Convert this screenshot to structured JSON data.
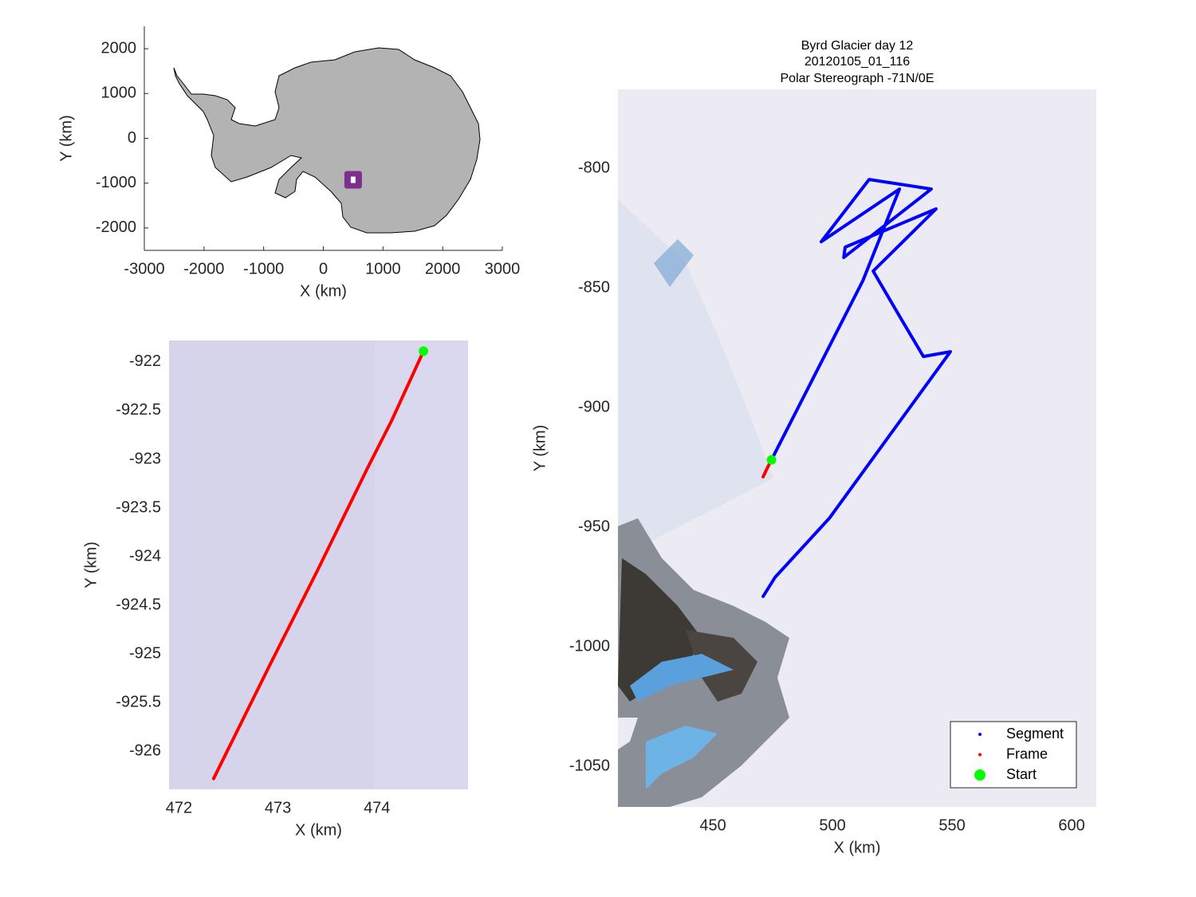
{
  "chart_data": [
    {
      "type": "map",
      "xlabel": "X (km)",
      "ylabel": "Y (km)",
      "xlim": [
        -3000,
        3000
      ],
      "ylim": [
        -2500,
        2500
      ],
      "xticks": [
        -3000,
        -2000,
        -1000,
        0,
        1000,
        2000,
        3000
      ],
      "yticks": [
        -2000,
        -1000,
        0,
        1000,
        2000
      ],
      "series": [
        {
          "color": "#7e2f8e",
          "style": "square",
          "x": [
            500
          ],
          "y": [
            -925
          ]
        }
      ]
    },
    {
      "type": "track",
      "xlabel": "X (km)",
      "ylabel": "Y (km)",
      "xlim": [
        471.9,
        474.92
      ],
      "ylim": [
        -926.39,
        -921.78
      ],
      "xticks": [
        472,
        473,
        474
      ],
      "yticks": [
        -922,
        -922.5,
        -923,
        -923.5,
        -924,
        -924.5,
        -925,
        -925.5,
        -926
      ],
      "series": [
        {
          "color": "#ff0000",
          "style": "line",
          "x": [
            472.35,
            472.9,
            473.4,
            473.9,
            474.15,
            474.47
          ],
          "y": [
            -926.28,
            -925.15,
            -924.14,
            -923.1,
            -922.6,
            -921.89
          ]
        },
        {
          "color": "#00ff00",
          "style": "marker",
          "x": [
            474.47
          ],
          "y": [
            -921.89
          ]
        }
      ]
    },
    {
      "type": "track",
      "title": [
        "Byrd Glacier day 12",
        "20120105_01_116",
        "Polar Stereograph -71N/0E"
      ],
      "xlabel": "X (km)",
      "ylabel": "Y (km)",
      "xlim": [
        410.3,
        610.3
      ],
      "ylim": [
        -1067,
        -767
      ],
      "xticks": [
        450,
        500,
        550,
        600
      ],
      "yticks": [
        -800,
        -850,
        -900,
        -950,
        -1000,
        -1050
      ],
      "legend": "southeast",
      "series": [
        {
          "name": "Segment",
          "color": "#0000ff",
          "style": "line",
          "x": [
            474.5,
            512.7,
            528,
            495.3,
            515.3,
            541.3,
            504.7,
            505.3,
            543.3,
            517,
            528.7,
            538,
            549.3,
            498.7,
            476,
            471
          ],
          "y": [
            -921.9,
            -847,
            -808.7,
            -830.7,
            -804.7,
            -808.7,
            -837.3,
            -833,
            -817,
            -843,
            -863,
            -878.7,
            -876.7,
            -946.3,
            -971,
            -979
          ]
        },
        {
          "name": "Frame",
          "color": "#ff0000",
          "style": "line",
          "x": [
            471,
            472.6,
            474.5
          ],
          "y": [
            -929,
            -925.6,
            -921.9
          ]
        },
        {
          "name": "Start",
          "color": "#00ff00",
          "style": "marker",
          "x": [
            474.5
          ],
          "y": [
            -921.9
          ]
        }
      ]
    }
  ]
}
